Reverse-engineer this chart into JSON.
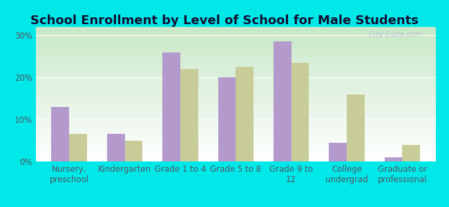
{
  "title": "School Enrollment by Level of School for Male Students",
  "categories": [
    "Nursery,\npreschool",
    "Kindergarten",
    "Grade 1 to 4",
    "Grade 5 to 8",
    "Grade 9 to\n12",
    "College\nundergrad",
    "Graduate or\nprofessional"
  ],
  "cologne_values": [
    13.0,
    6.5,
    26.0,
    20.0,
    28.5,
    4.5,
    1.0
  ],
  "minnesota_values": [
    6.5,
    5.0,
    22.0,
    22.5,
    23.5,
    16.0,
    4.0
  ],
  "cologne_color": "#b399cc",
  "minnesota_color": "#c8cc99",
  "background_color": "#00e8e8",
  "plot_bg_top": "#d4edd4",
  "plot_bg_bottom": "#ffffff",
  "yticks": [
    0,
    10,
    20,
    30
  ],
  "ylim": [
    0,
    32
  ],
  "bar_width": 0.32,
  "title_fontsize": 13,
  "tick_fontsize": 8.5,
  "legend_fontsize": 9,
  "title_color": "#111133",
  "tick_color": "#555566",
  "watermark": "City-Data.com"
}
